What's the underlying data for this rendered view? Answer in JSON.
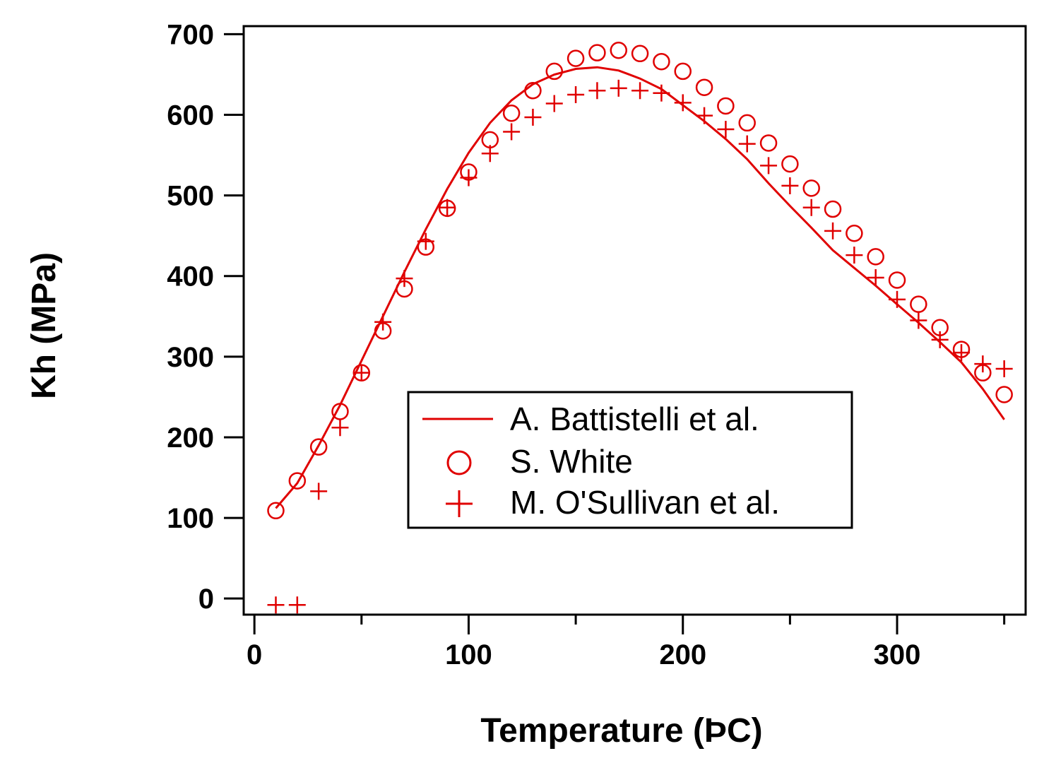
{
  "chart_data": {
    "type": "scatter",
    "xlabel": "Temperature (ÞC)",
    "ylabel": "Kh (MPa)",
    "xlim": [
      -5,
      360
    ],
    "ylim": [
      -20,
      710
    ],
    "xticks": [
      0,
      100,
      200,
      300
    ],
    "yticks": [
      0,
      100,
      200,
      300,
      400,
      500,
      600,
      700
    ],
    "grid": false,
    "legend_position": "lower-center",
    "color": "#e00000",
    "series": [
      {
        "name": "A. Battistelli et al.",
        "style": "line",
        "x": [
          10,
          20,
          30,
          40,
          50,
          60,
          70,
          80,
          90,
          100,
          110,
          120,
          130,
          140,
          150,
          160,
          170,
          180,
          190,
          200,
          210,
          220,
          230,
          240,
          250,
          260,
          270,
          280,
          290,
          300,
          310,
          320,
          330,
          340,
          350
        ],
        "y": [
          112,
          143,
          190,
          240,
          295,
          350,
          405,
          458,
          508,
          553,
          590,
          618,
          638,
          650,
          657,
          659,
          655,
          645,
          632,
          612,
          592,
          570,
          545,
          515,
          487,
          460,
          432,
          410,
          388,
          365,
          342,
          318,
          293,
          260,
          222
        ]
      },
      {
        "name": "S. White",
        "style": "circle",
        "x": [
          10,
          20,
          30,
          40,
          50,
          60,
          70,
          80,
          90,
          100,
          110,
          120,
          130,
          140,
          150,
          160,
          170,
          180,
          190,
          200,
          210,
          220,
          230,
          240,
          250,
          260,
          270,
          280,
          290,
          300,
          310,
          320,
          330,
          340,
          350
        ],
        "y": [
          109,
          146,
          188,
          232,
          280,
          332,
          384,
          436,
          484,
          529,
          569,
          602,
          630,
          654,
          670,
          677,
          680,
          676,
          666,
          654,
          634,
          611,
          590,
          565,
          539,
          509,
          483,
          453,
          424,
          395,
          365,
          336,
          309,
          280,
          253
        ]
      },
      {
        "name": "M. O'Sullivan et al.",
        "style": "plus",
        "x": [
          10,
          20,
          30,
          40,
          50,
          60,
          70,
          80,
          90,
          100,
          110,
          120,
          130,
          140,
          150,
          160,
          170,
          180,
          190,
          200,
          210,
          220,
          230,
          240,
          250,
          260,
          270,
          280,
          290,
          300,
          310,
          320,
          330,
          340,
          350
        ],
        "y": [
          -8,
          -8,
          133,
          212,
          280,
          343,
          397,
          443,
          485,
          522,
          552,
          579,
          597,
          614,
          625,
          630,
          633,
          630,
          627,
          615,
          599,
          582,
          564,
          537,
          512,
          485,
          456,
          426,
          398,
          371,
          345,
          321,
          305,
          291,
          285
        ]
      }
    ]
  }
}
